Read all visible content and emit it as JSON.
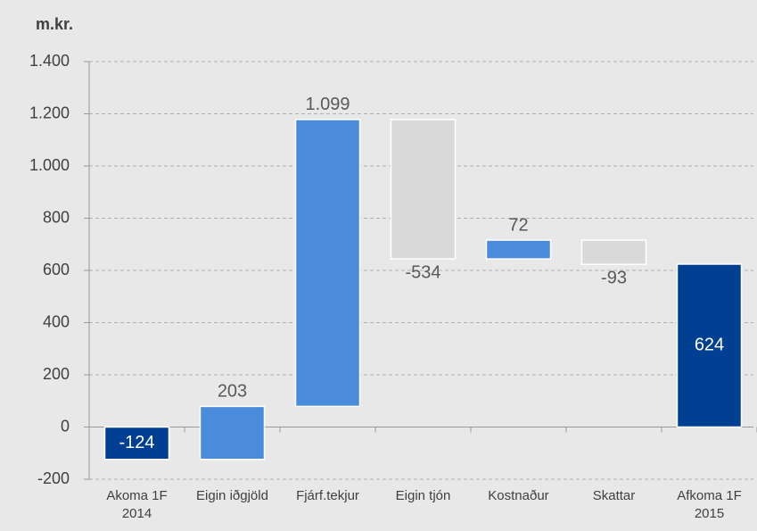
{
  "chart_data": {
    "type": "waterfall",
    "y_label": "m.kr.",
    "categories": [
      [
        "Akoma 1F",
        "2014"
      ],
      [
        "Eigin iðgjöld"
      ],
      [
        "Fjárf.tekjur"
      ],
      [
        "Eigin tjón"
      ],
      [
        "Kostnaður"
      ],
      [
        "Skattar"
      ],
      [
        "Afkoma 1F",
        "2015"
      ]
    ],
    "values": [
      -124,
      203,
      1099,
      -534,
      72,
      -93,
      624
    ],
    "value_labels": [
      "-124",
      "203",
      "1.099",
      "-534",
      "72",
      "-93",
      "624"
    ],
    "is_total": [
      true,
      false,
      false,
      false,
      false,
      false,
      true
    ],
    "colors": [
      "#003f91",
      "#4a8bdc",
      "#4a8bdc",
      "#d9d9d9",
      "#4a8bdc",
      "#d9d9d9",
      "#003f91"
    ],
    "ylim": [
      -200,
      1400
    ],
    "yticks": [
      -200,
      0,
      200,
      400,
      600,
      800,
      {
        "value": 1000,
        "label": "1.000"
      },
      {
        "value": 1200,
        "label": "1.200"
      },
      {
        "value": 1400,
        "label": "1.400"
      }
    ],
    "grid": true
  }
}
